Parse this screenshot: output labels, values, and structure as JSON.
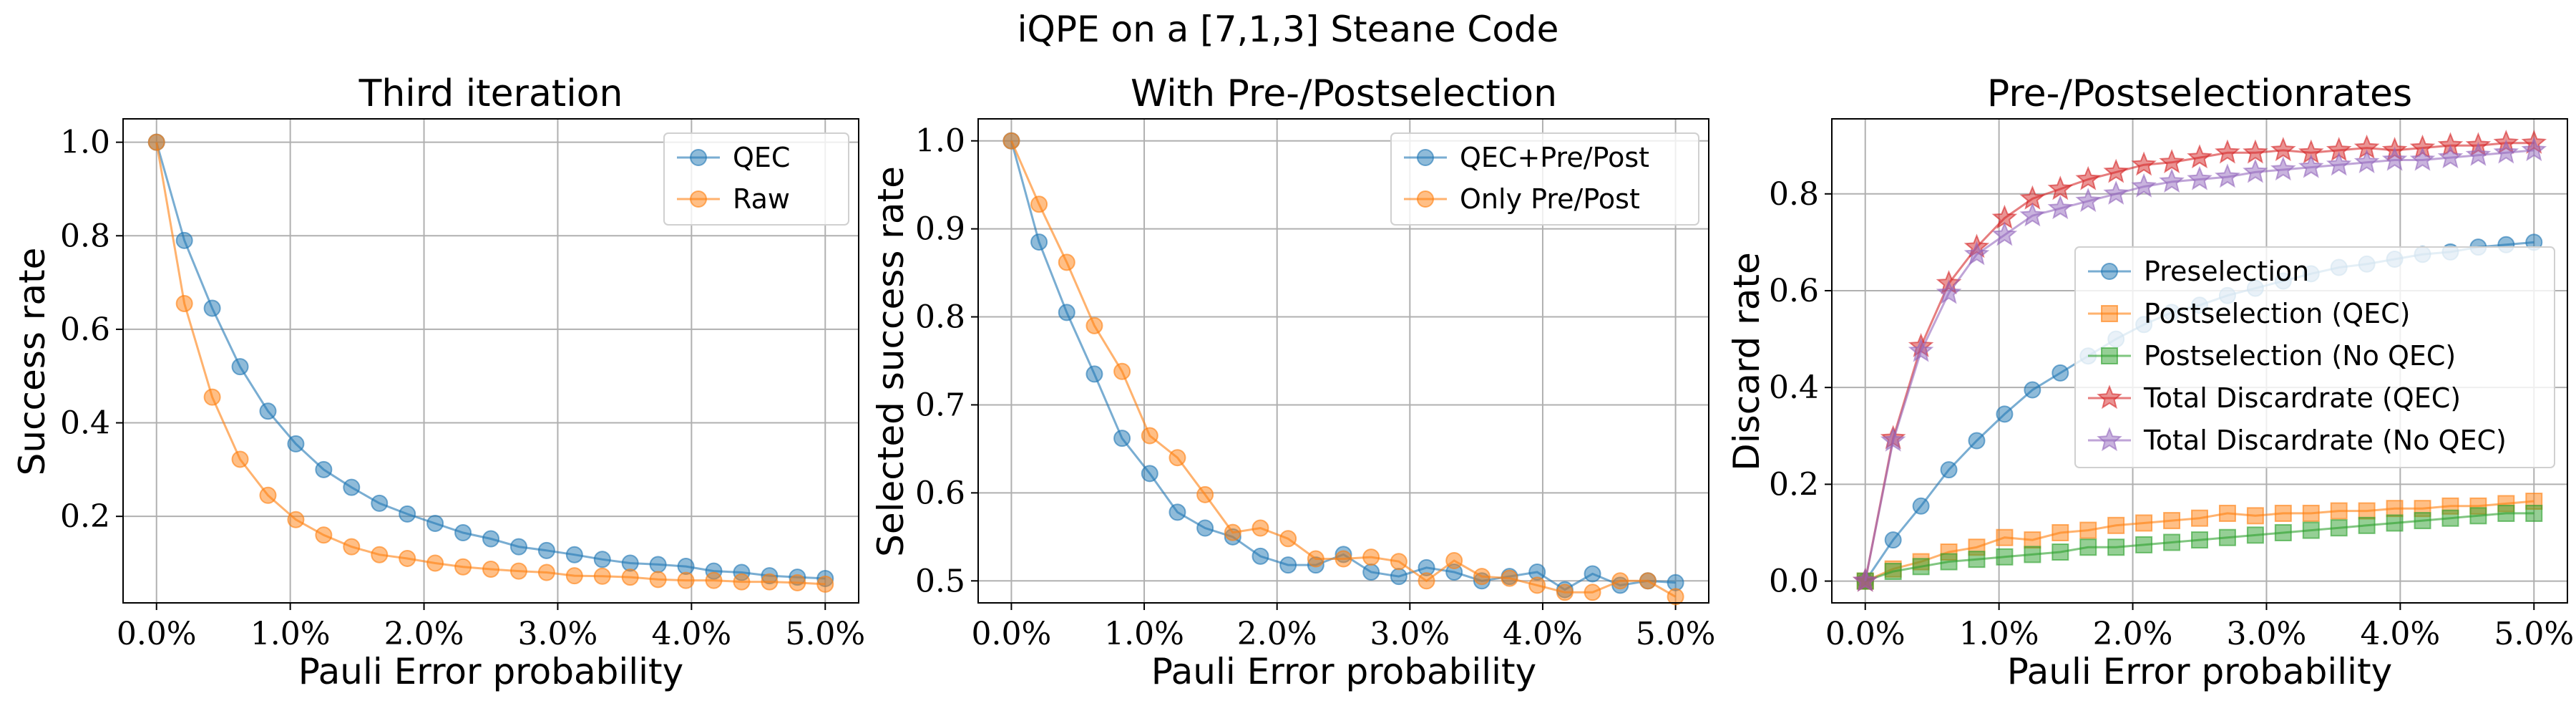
{
  "figure": {
    "suptitle": "iQPE on a [7,1,3] Steane Code"
  },
  "chart_data": [
    {
      "type": "line",
      "title": "Third iteration",
      "xlabel": "Pauli Error probability",
      "ylabel": "Success rate",
      "xlim": [
        -0.25,
        5.25
      ],
      "ylim": [
        0.015,
        1.05
      ],
      "xticks": [
        0,
        1,
        2,
        3,
        4,
        5
      ],
      "xticklabels": [
        "0.0%",
        "1.0%",
        "2.0%",
        "3.0%",
        "4.0%",
        "5.0%"
      ],
      "yticks": [
        0.2,
        0.4,
        0.6,
        0.8,
        1.0
      ],
      "yticklabels": [
        "0.2",
        "0.4",
        "0.6",
        "0.8",
        "1.0"
      ],
      "grid": true,
      "legend": "top-right",
      "x": [
        0.0,
        0.2083,
        0.4167,
        0.625,
        0.8333,
        1.0417,
        1.25,
        1.4583,
        1.6667,
        1.875,
        2.0833,
        2.2917,
        2.5,
        2.7083,
        2.9167,
        3.125,
        3.3333,
        3.5417,
        3.75,
        3.9583,
        4.1667,
        4.375,
        4.5833,
        4.7917,
        5.0
      ],
      "series": [
        {
          "name": "QEC",
          "color": "#1f77b4",
          "marker": "circle",
          "values": [
            1.0,
            0.79,
            0.645,
            0.52,
            0.425,
            0.355,
            0.3,
            0.262,
            0.228,
            0.205,
            0.185,
            0.165,
            0.152,
            0.135,
            0.127,
            0.118,
            0.108,
            0.1,
            0.097,
            0.093,
            0.083,
            0.08,
            0.073,
            0.07,
            0.067
          ]
        },
        {
          "name": "Raw",
          "color": "#ff7f0e",
          "marker": "circle",
          "values": [
            1.0,
            0.655,
            0.455,
            0.322,
            0.245,
            0.193,
            0.16,
            0.135,
            0.118,
            0.11,
            0.1,
            0.092,
            0.087,
            0.083,
            0.08,
            0.073,
            0.072,
            0.07,
            0.065,
            0.063,
            0.063,
            0.06,
            0.06,
            0.058,
            0.055
          ]
        }
      ]
    },
    {
      "type": "line",
      "title": "With Pre-/Postselection",
      "xlabel": "Pauli Error probability",
      "ylabel": "Selected success rate",
      "xlim": [
        -0.25,
        5.25
      ],
      "ylim": [
        0.475,
        1.025
      ],
      "xticks": [
        0,
        1,
        2,
        3,
        4,
        5
      ],
      "xticklabels": [
        "0.0%",
        "1.0%",
        "2.0%",
        "3.0%",
        "4.0%",
        "5.0%"
      ],
      "yticks": [
        0.5,
        0.6,
        0.7,
        0.8,
        0.9,
        1.0
      ],
      "yticklabels": [
        "0.5",
        "0.6",
        "0.7",
        "0.8",
        "0.9",
        "1.0"
      ],
      "grid": true,
      "legend": "top-right",
      "x": [
        0.0,
        0.2083,
        0.4167,
        0.625,
        0.8333,
        1.0417,
        1.25,
        1.4583,
        1.6667,
        1.875,
        2.0833,
        2.2917,
        2.5,
        2.7083,
        2.9167,
        3.125,
        3.3333,
        3.5417,
        3.75,
        3.9583,
        4.1667,
        4.375,
        4.5833,
        4.7917,
        5.0
      ],
      "series": [
        {
          "name": "QEC+Pre/Post",
          "color": "#1f77b4",
          "marker": "circle",
          "values": [
            1.0,
            0.885,
            0.805,
            0.735,
            0.662,
            0.622,
            0.578,
            0.56,
            0.55,
            0.528,
            0.518,
            0.518,
            0.53,
            0.51,
            0.505,
            0.515,
            0.51,
            0.5,
            0.505,
            0.51,
            0.49,
            0.508,
            0.495,
            0.5,
            0.498
          ]
        },
        {
          "name": "Only Pre/Post",
          "color": "#ff7f0e",
          "marker": "circle",
          "values": [
            1.0,
            0.928,
            0.862,
            0.79,
            0.738,
            0.665,
            0.64,
            0.598,
            0.555,
            0.56,
            0.548,
            0.525,
            0.525,
            0.527,
            0.522,
            0.5,
            0.523,
            0.505,
            0.503,
            0.495,
            0.487,
            0.487,
            0.5,
            0.5,
            0.482
          ]
        }
      ]
    },
    {
      "type": "line",
      "title": "Pre-/Postselectionrates",
      "xlabel": "Pauli Error probability",
      "ylabel": "Discard rate",
      "xlim": [
        -0.25,
        5.25
      ],
      "ylim": [
        -0.045,
        0.955
      ],
      "xticks": [
        0,
        1,
        2,
        3,
        4,
        5
      ],
      "xticklabels": [
        "0.0%",
        "1.0%",
        "2.0%",
        "3.0%",
        "4.0%",
        "5.0%"
      ],
      "yticks": [
        0.0,
        0.2,
        0.4,
        0.6,
        0.8
      ],
      "yticklabels": [
        "0.0",
        "0.2",
        "0.4",
        "0.6",
        "0.8"
      ],
      "grid": true,
      "legend": "center-right",
      "x": [
        0.0,
        0.2083,
        0.4167,
        0.625,
        0.8333,
        1.0417,
        1.25,
        1.4583,
        1.6667,
        1.875,
        2.0833,
        2.2917,
        2.5,
        2.7083,
        2.9167,
        3.125,
        3.3333,
        3.5417,
        3.75,
        3.9583,
        4.1667,
        4.375,
        4.5833,
        4.7917,
        5.0
      ],
      "series": [
        {
          "name": "Preselection",
          "color": "#1f77b4",
          "marker": "circle",
          "values": [
            0.0,
            0.085,
            0.155,
            0.23,
            0.29,
            0.345,
            0.395,
            0.43,
            0.465,
            0.5,
            0.53,
            0.555,
            0.57,
            0.59,
            0.605,
            0.62,
            0.635,
            0.648,
            0.655,
            0.665,
            0.675,
            0.68,
            0.69,
            0.695,
            0.7
          ]
        },
        {
          "name": "Postselection (QEC)",
          "color": "#ff7f0e",
          "marker": "square",
          "values": [
            0.0,
            0.025,
            0.04,
            0.06,
            0.07,
            0.09,
            0.085,
            0.1,
            0.105,
            0.115,
            0.12,
            0.125,
            0.13,
            0.14,
            0.135,
            0.14,
            0.14,
            0.145,
            0.145,
            0.15,
            0.15,
            0.155,
            0.155,
            0.16,
            0.165
          ]
        },
        {
          "name": "Postselection (No QEC)",
          "color": "#2ca02c",
          "marker": "square",
          "values": [
            0.0,
            0.02,
            0.03,
            0.04,
            0.045,
            0.05,
            0.055,
            0.06,
            0.07,
            0.07,
            0.075,
            0.08,
            0.085,
            0.09,
            0.095,
            0.1,
            0.105,
            0.11,
            0.115,
            0.12,
            0.125,
            0.13,
            0.135,
            0.14,
            0.14
          ]
        },
        {
          "name": "Total Discardrate (QEC)",
          "color": "#d62728",
          "marker": "star",
          "values": [
            0.0,
            0.295,
            0.485,
            0.615,
            0.69,
            0.75,
            0.79,
            0.81,
            0.83,
            0.845,
            0.86,
            0.865,
            0.875,
            0.885,
            0.885,
            0.89,
            0.885,
            0.89,
            0.895,
            0.89,
            0.895,
            0.9,
            0.9,
            0.905,
            0.905
          ]
        },
        {
          "name": "Total Discardrate (No QEC)",
          "color": "#9467bd",
          "marker": "star",
          "values": [
            0.0,
            0.29,
            0.475,
            0.595,
            0.675,
            0.715,
            0.755,
            0.77,
            0.785,
            0.8,
            0.815,
            0.825,
            0.83,
            0.835,
            0.845,
            0.85,
            0.855,
            0.86,
            0.865,
            0.87,
            0.87,
            0.875,
            0.88,
            0.885,
            0.89
          ]
        }
      ]
    }
  ]
}
